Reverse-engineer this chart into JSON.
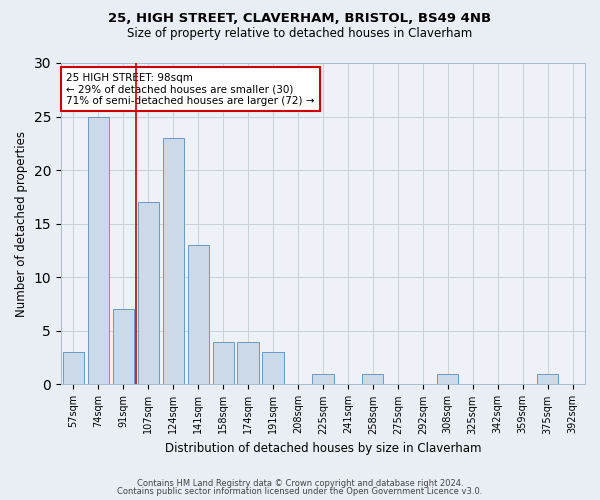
{
  "title1": "25, HIGH STREET, CLAVERHAM, BRISTOL, BS49 4NB",
  "title2": "Size of property relative to detached houses in Claverham",
  "xlabel": "Distribution of detached houses by size in Claverham",
  "ylabel": "Number of detached properties",
  "footer1": "Contains HM Land Registry data © Crown copyright and database right 2024.",
  "footer2": "Contains public sector information licensed under the Open Government Licence v3.0.",
  "categories": [
    "57sqm",
    "74sqm",
    "91sqm",
    "107sqm",
    "124sqm",
    "141sqm",
    "158sqm",
    "174sqm",
    "191sqm",
    "208sqm",
    "225sqm",
    "241sqm",
    "258sqm",
    "275sqm",
    "292sqm",
    "308sqm",
    "325sqm",
    "342sqm",
    "359sqm",
    "375sqm",
    "392sqm"
  ],
  "values": [
    3,
    25,
    7,
    17,
    23,
    13,
    4,
    4,
    3,
    0,
    1,
    0,
    1,
    0,
    0,
    1,
    0,
    0,
    0,
    1,
    0
  ],
  "bar_color": "#ccd9e8",
  "bar_edge_color": "#5b8db8",
  "annotation_text": "25 HIGH STREET: 98sqm\n← 29% of detached houses are smaller (30)\n71% of semi-detached houses are larger (72) →",
  "annotation_box_facecolor": "#ffffff",
  "annotation_box_edgecolor": "#cc0000",
  "red_line_x": 2.5,
  "ylim": [
    0,
    30
  ],
  "yticks": [
    0,
    5,
    10,
    15,
    20,
    25,
    30
  ],
  "grid_color": "#c8d0da",
  "background_color": "#e8eef4",
  "plot_background": "#eef2f8"
}
